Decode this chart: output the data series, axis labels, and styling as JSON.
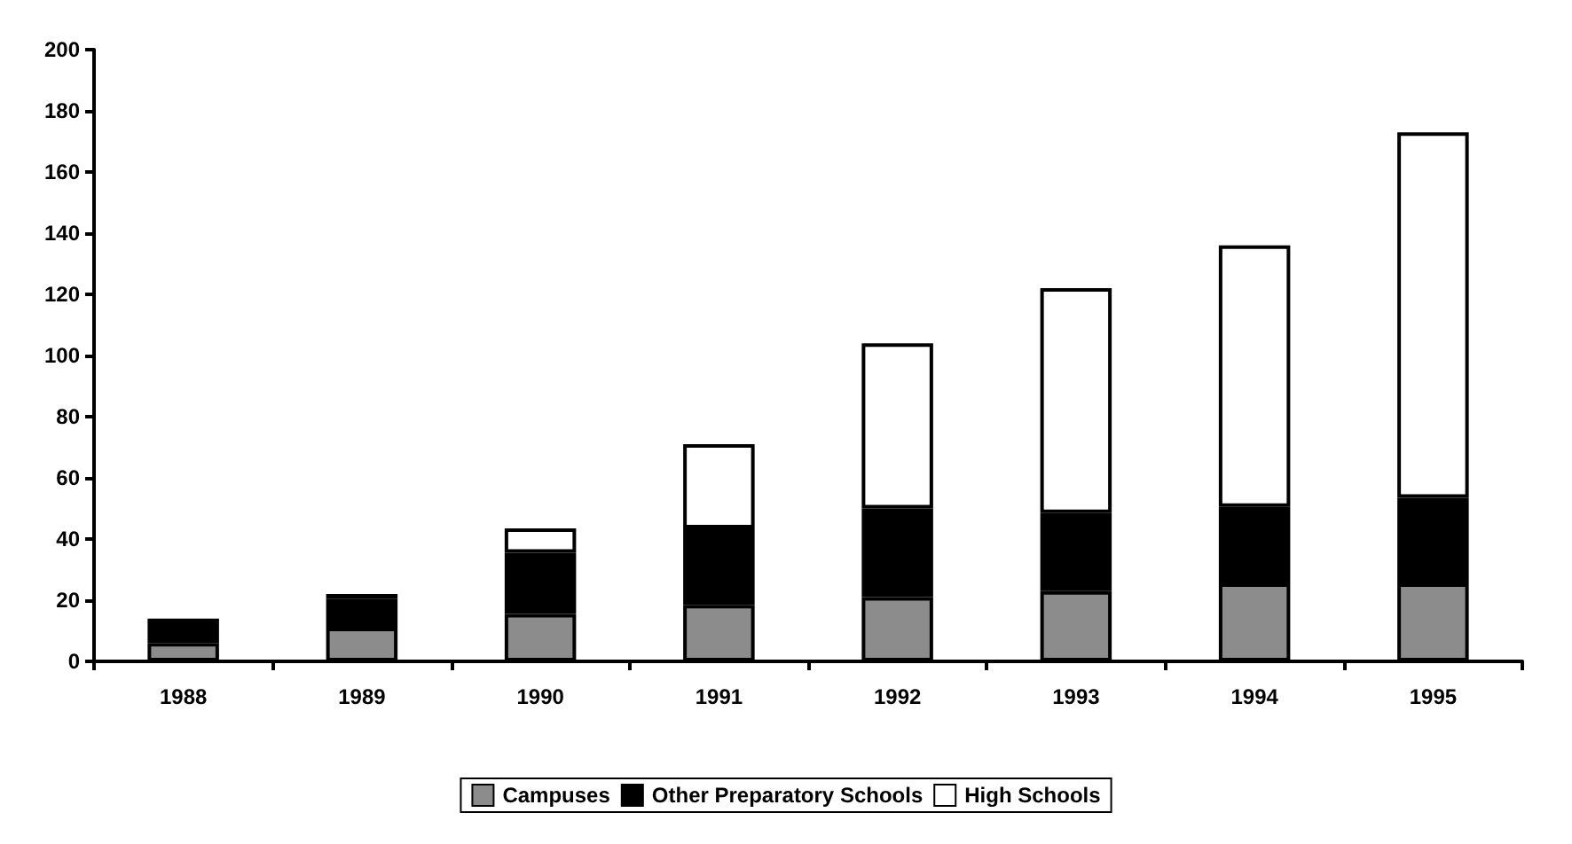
{
  "chart_data": {
    "type": "bar",
    "stacked": true,
    "categories": [
      "1988",
      "1989",
      "1990",
      "1991",
      "1992",
      "1993",
      "1994",
      "1995"
    ],
    "series": [
      {
        "name": "Campuses",
        "color": "#8c8c8c",
        "values": [
          6,
          11,
          15.5,
          18.5,
          21,
          23,
          25.5,
          25.5
        ]
      },
      {
        "name": "Other Preparatory Schools",
        "color": "#000000",
        "values": [
          8,
          9.5,
          20,
          25,
          29,
          25.5,
          25,
          28
        ]
      },
      {
        "name": "High Schools",
        "color": "#ffffff",
        "values": [
          null,
          1.5,
          8,
          27.5,
          54,
          73.5,
          85.5,
          119.5
        ]
      }
    ],
    "ylim": [
      0,
      200
    ],
    "yticks": [
      0,
      20,
      40,
      60,
      80,
      100,
      120,
      140,
      160,
      180,
      200
    ],
    "grid": false,
    "legend": "bottom"
  }
}
